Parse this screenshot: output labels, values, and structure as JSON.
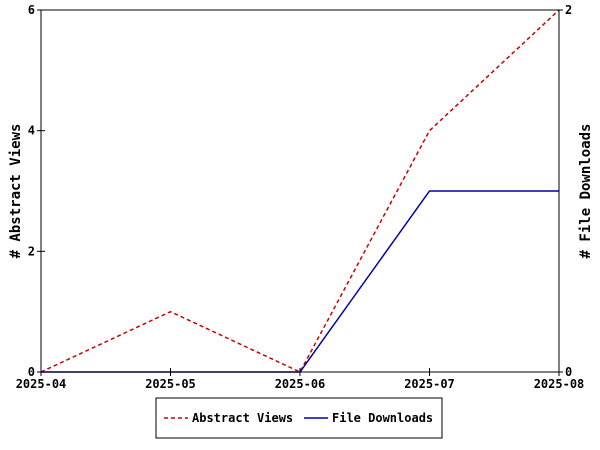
{
  "chart_data": {
    "type": "line",
    "categories": [
      "2025-04",
      "2025-05",
      "2025-06",
      "2025-07",
      "2025-08"
    ],
    "series": [
      {
        "name": "Abstract Views",
        "axis": "left",
        "values": [
          0,
          1,
          0,
          4,
          6
        ],
        "color": "#cc0000",
        "dashed": true
      },
      {
        "name": "File Downloads",
        "axis": "right",
        "values": [
          0,
          0,
          0,
          1,
          1
        ],
        "color": "#0000aa",
        "dashed": false
      }
    ],
    "ylabel": "# Abstract Views",
    "y2label": "# File Downloads",
    "ylim": [
      0,
      6
    ],
    "y2lim": [
      0,
      2
    ],
    "yticks": [
      "0",
      "2",
      "4",
      "6"
    ],
    "y2ticks": [
      "0",
      "2"
    ],
    "grid": false,
    "legend_position": "bottom-center"
  }
}
